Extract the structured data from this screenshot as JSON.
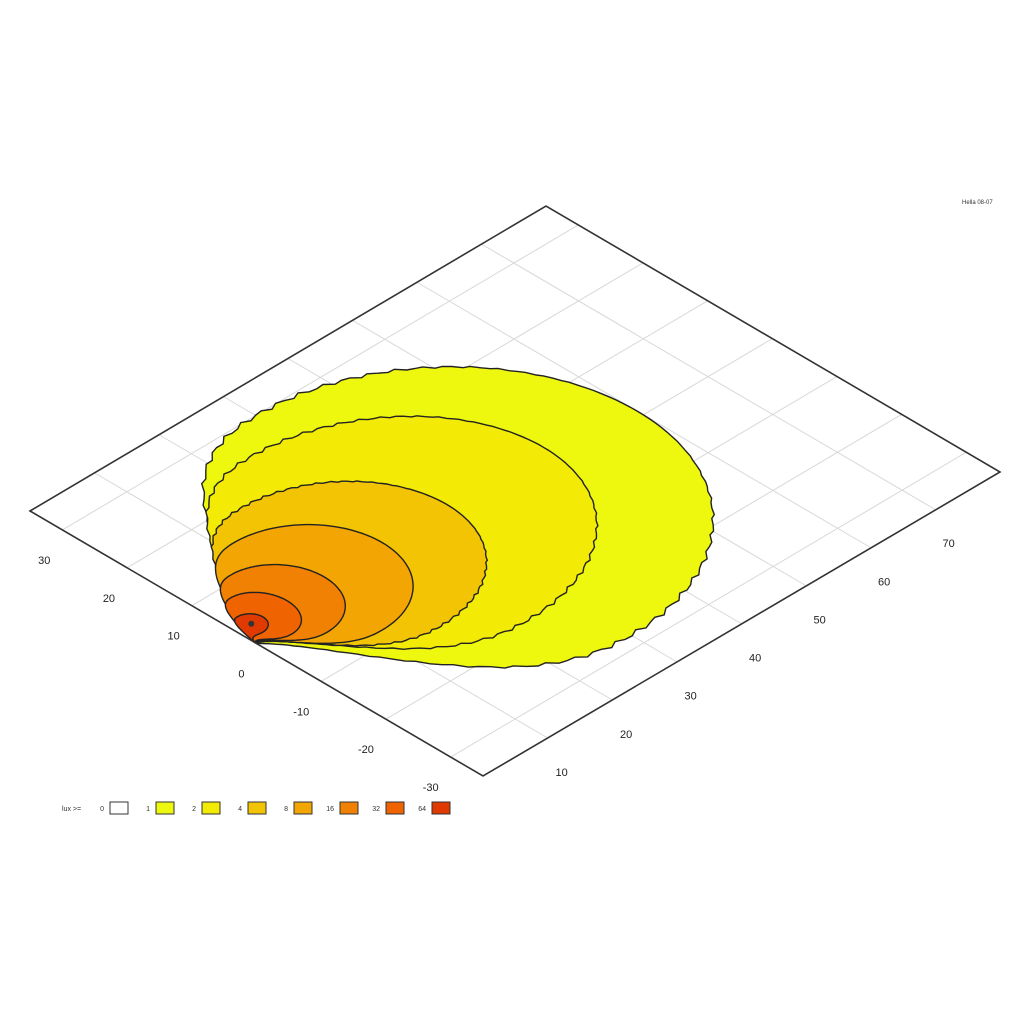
{
  "chart_data": {
    "type": "heatmap",
    "subtype": "isometric contour plot (filled isolines)",
    "corner_label": "Hella  08-07",
    "grid": true,
    "axes": {
      "left": {
        "ticks": [
          "30",
          "20",
          "10",
          "0",
          "-10",
          "-20",
          "-30"
        ],
        "range": [
          -35,
          35
        ]
      },
      "right": {
        "ticks": [
          "10",
          "20",
          "30",
          "40",
          "50",
          "60",
          "70"
        ],
        "range": [
          0,
          80
        ]
      }
    },
    "legend": {
      "label": "lux >=",
      "placement": "bottom-left",
      "entries": [
        {
          "value": "0",
          "color": "#ffffff"
        },
        {
          "value": "1",
          "color": "#eef80f"
        },
        {
          "value": "2",
          "color": "#f3ea05"
        },
        {
          "value": "4",
          "color": "#f2c404"
        },
        {
          "value": "8",
          "color": "#f2a503"
        },
        {
          "value": "16",
          "color": "#f18103"
        },
        {
          "value": "32",
          "color": "#ef6300"
        },
        {
          "value": "64",
          "color": "#e03a00"
        }
      ]
    },
    "contours": [
      {
        "level": 1,
        "color": "#eef80f",
        "x_range": [
          0,
          60
        ],
        "y_range": [
          -28,
          30
        ]
      },
      {
        "level": 2,
        "color": "#f3ea05",
        "x_range": [
          0,
          48
        ],
        "y_range": [
          -18,
          25
        ]
      },
      {
        "level": 4,
        "color": "#f2c404",
        "x_range": [
          0,
          33
        ],
        "y_range": [
          -12,
          19
        ]
      },
      {
        "level": 8,
        "color": "#f2a503",
        "x_range": [
          0,
          23
        ],
        "y_range": [
          -8,
          15
        ]
      },
      {
        "level": 16,
        "color": "#f18103",
        "x_range": [
          0,
          14
        ],
        "y_range": [
          -4,
          11
        ]
      },
      {
        "level": 32,
        "color": "#ef6300",
        "x_range": [
          0,
          8
        ],
        "y_range": [
          -1.5,
          8
        ]
      },
      {
        "level": 64,
        "color": "#e03a00",
        "x_range": [
          0,
          4
        ],
        "y_range": [
          1,
          5
        ]
      }
    ]
  }
}
